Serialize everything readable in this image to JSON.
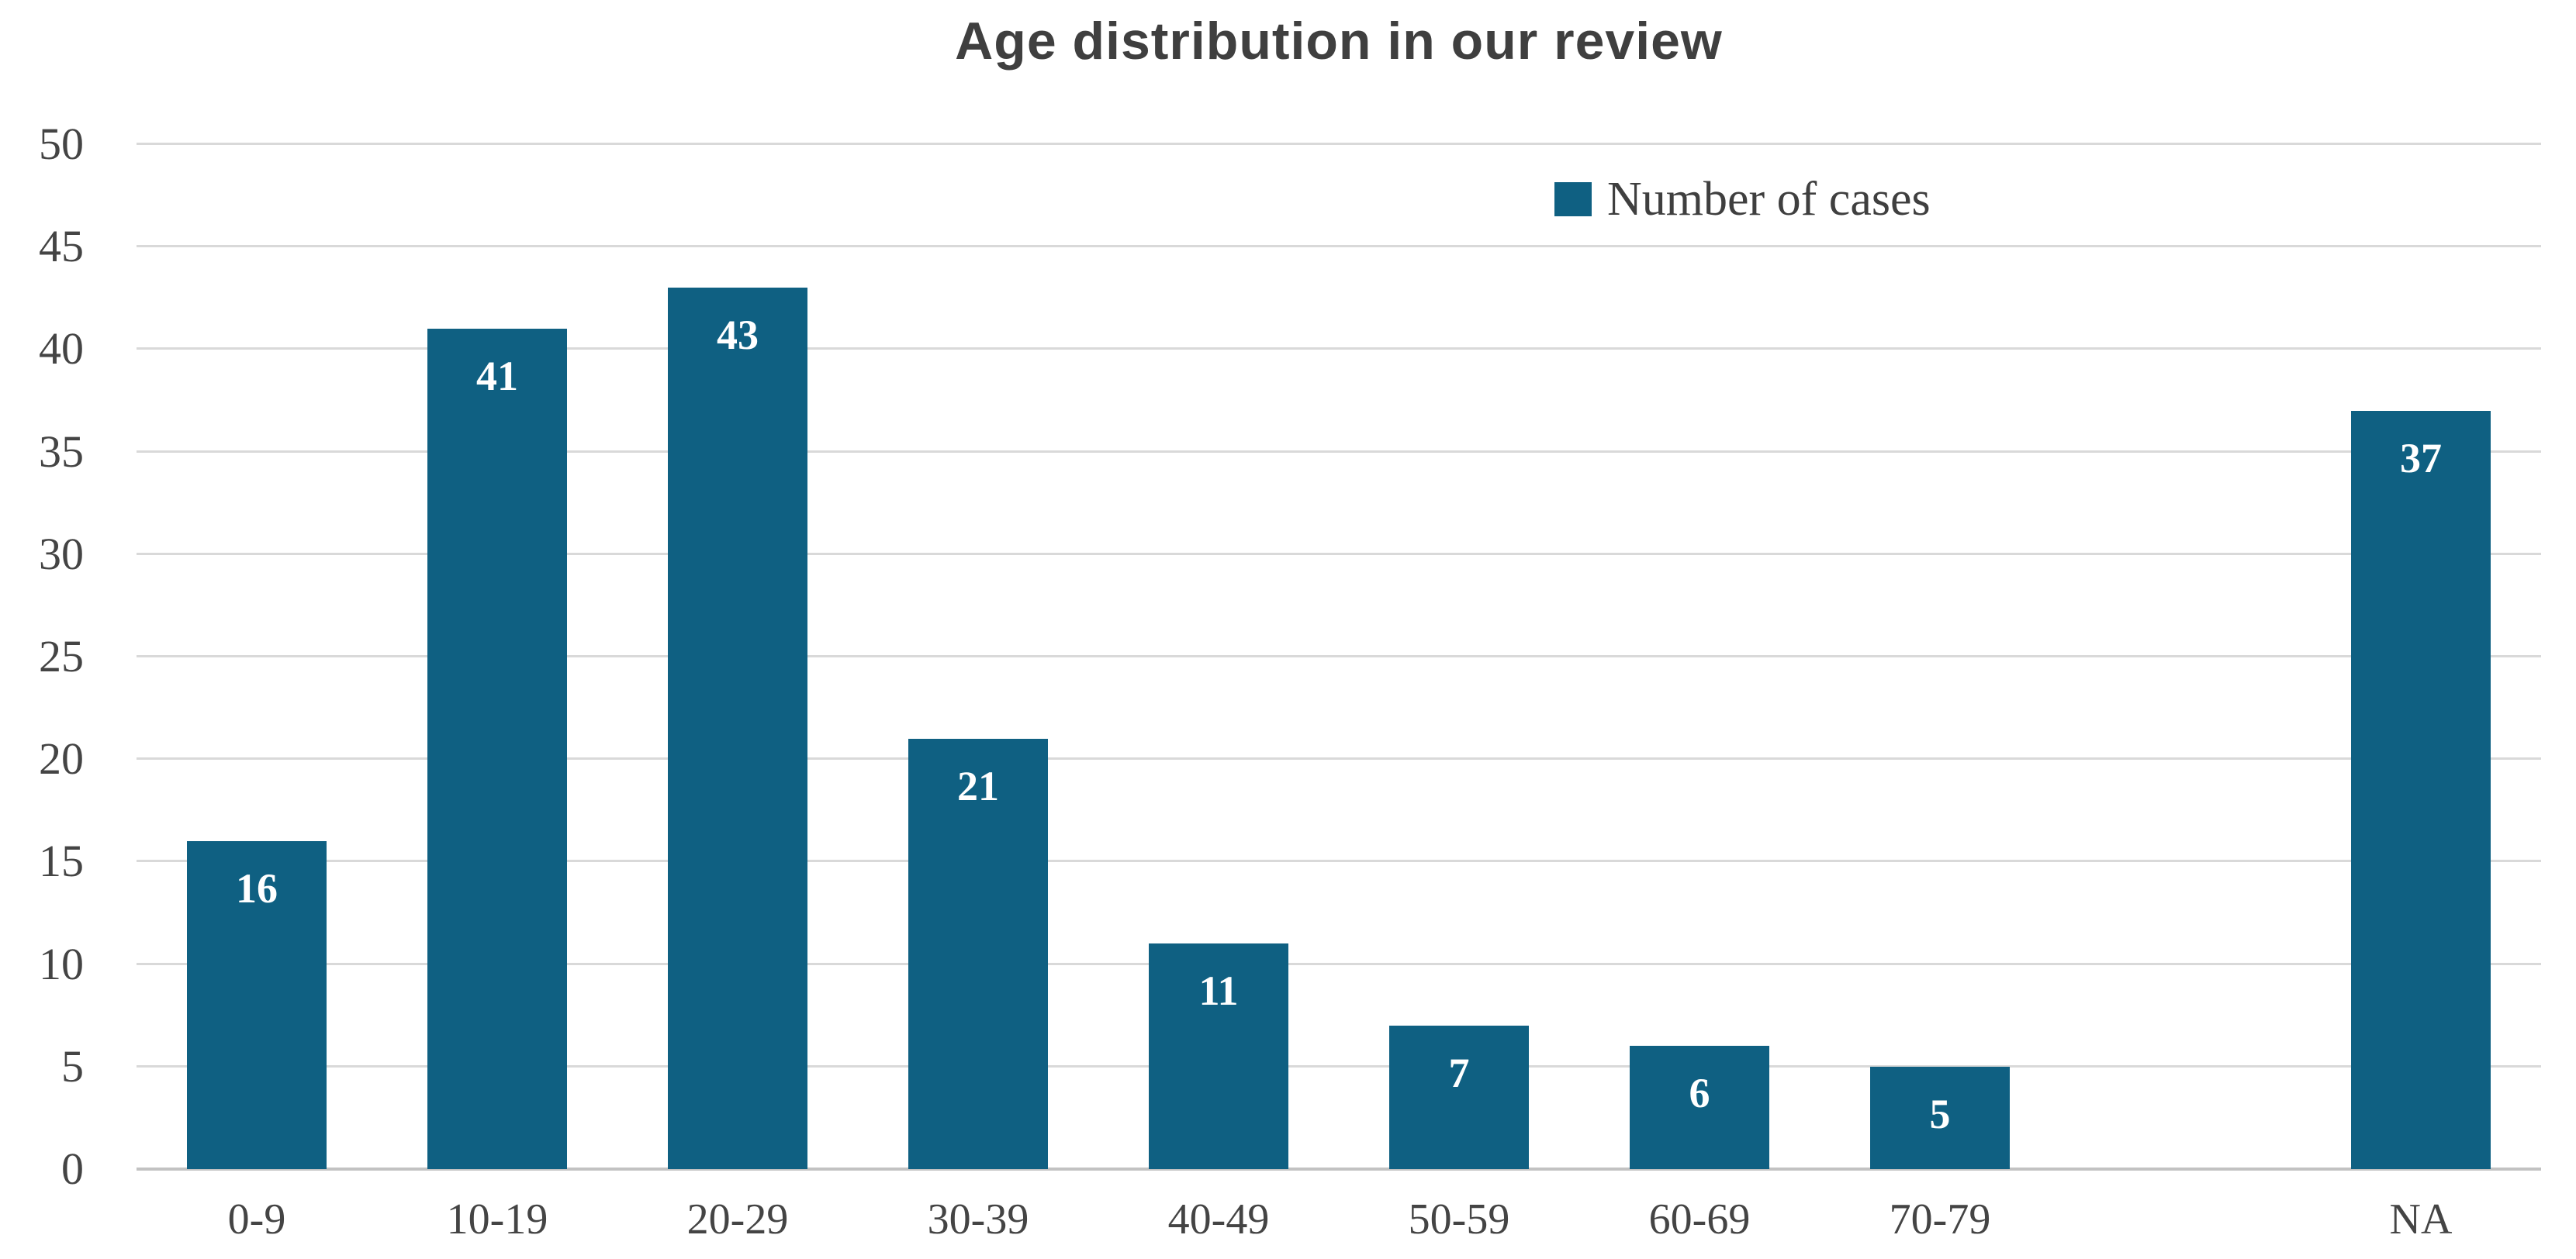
{
  "chart_data": {
    "type": "bar",
    "title": "Age distribution in our review",
    "legend": {
      "label": "Number of cases",
      "position": "top-right",
      "swatch": "square"
    },
    "categories": [
      "0-9",
      "10-19",
      "20-29",
      "30-39",
      "40-49",
      "50-59",
      "60-69",
      "70-79",
      "",
      "NA"
    ],
    "values": [
      16,
      41,
      43,
      21,
      11,
      7,
      6,
      5,
      null,
      37
    ],
    "data_labels": [
      "16",
      "41",
      "43",
      "21",
      "11",
      "7",
      "6",
      "5",
      "",
      "37"
    ],
    "xlabel": "",
    "ylabel": "",
    "y_ticks": [
      0,
      5,
      10,
      15,
      20,
      25,
      30,
      35,
      40,
      45,
      50
    ],
    "ylim": [
      0,
      50
    ],
    "ytick_step": 5,
    "grid": "horizontal",
    "colors": {
      "bar": "#0f6082",
      "gridline": "#d9d9d9",
      "axis_line": "#c2c2c2",
      "tick_text": "#444444",
      "title_text": "#3f3f3f",
      "data_label_text": "#ffffff",
      "background": "#ffffff"
    }
  }
}
